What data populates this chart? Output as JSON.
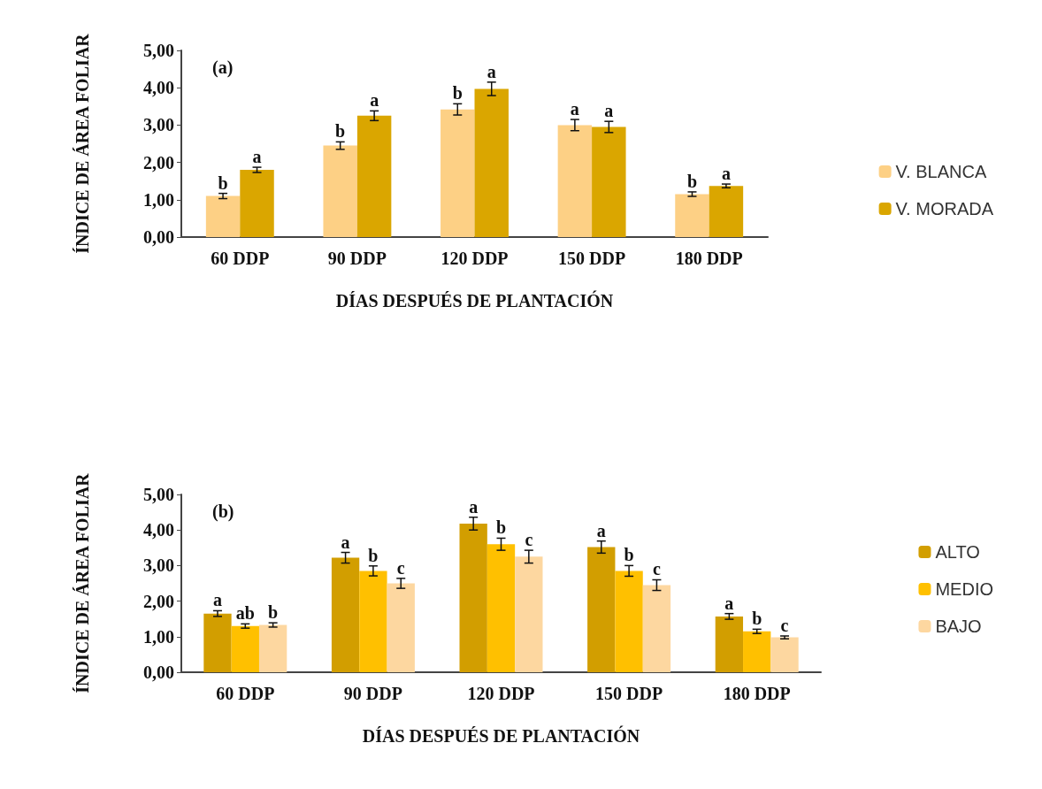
{
  "chart_data": [
    {
      "type": "bar",
      "title": "(a)",
      "xlabel": "DÍAS DESPUÉS DE PLANTACIÓN",
      "ylabel": "ÍNDICE DE ÁREA FOLIAR",
      "categories": [
        "60 DDP",
        "90 DDP",
        "120 DDP",
        "150 DDP",
        "180 DDP"
      ],
      "series": [
        {
          "name": "V. BLANCA",
          "color": "#fdd085",
          "values": [
            1.1,
            2.45,
            3.42,
            3.0,
            1.15
          ],
          "errors": [
            0.07,
            0.1,
            0.15,
            0.15,
            0.06
          ],
          "value_labels": [
            "b",
            "b",
            "b",
            "a",
            "b"
          ]
        },
        {
          "name": "V. MORADA",
          "color": "#daa600",
          "values": [
            1.8,
            3.25,
            3.97,
            2.95,
            1.37
          ],
          "errors": [
            0.07,
            0.13,
            0.18,
            0.15,
            0.05
          ],
          "value_labels": [
            "a",
            "a",
            "a",
            "a",
            "a"
          ]
        }
      ],
      "ylim": [
        0,
        5
      ],
      "yticks": [
        {
          "value": 0,
          "label": "0,00"
        },
        {
          "value": 1,
          "label": "1,00"
        },
        {
          "value": 2,
          "label": "2,00"
        },
        {
          "value": 3,
          "label": "3,00"
        },
        {
          "value": 4,
          "label": "4,00"
        },
        {
          "value": 5,
          "label": "5,00"
        }
      ],
      "legend": "right",
      "grid": false
    },
    {
      "type": "bar",
      "title": "(b)",
      "xlabel": "DÍAS DESPUÉS DE PLANTACIÓN",
      "ylabel": "ÍNDICE DE ÁREA FOLIAR",
      "categories": [
        "60 DDP",
        "90 DDP",
        "120 DDP",
        "150 DDP",
        "180 DDP"
      ],
      "series": [
        {
          "name": "ALTO",
          "color": "#d29e00",
          "values": [
            1.65,
            3.22,
            4.18,
            3.52,
            1.57
          ],
          "errors": [
            0.08,
            0.15,
            0.18,
            0.17,
            0.08
          ],
          "value_labels": [
            "a",
            "a",
            "a",
            "a",
            "a"
          ]
        },
        {
          "name": "MEDIO",
          "color": "#ffc000",
          "values": [
            1.3,
            2.85,
            3.6,
            2.85,
            1.15
          ],
          "errors": [
            0.06,
            0.14,
            0.17,
            0.15,
            0.06
          ],
          "value_labels": [
            "ab",
            "b",
            "b",
            "b",
            "b"
          ]
        },
        {
          "name": "BAJO",
          "color": "#fdd7a0",
          "values": [
            1.33,
            2.5,
            3.25,
            2.45,
            0.98
          ],
          "errors": [
            0.06,
            0.14,
            0.18,
            0.15,
            0.04
          ],
          "value_labels": [
            "b",
            "c",
            "c",
            "c",
            "c"
          ]
        }
      ],
      "ylim": [
        0,
        5
      ],
      "yticks": [
        {
          "value": 0,
          "label": "0,00"
        },
        {
          "value": 1,
          "label": "1,00"
        },
        {
          "value": 2,
          "label": "2,00"
        },
        {
          "value": 3,
          "label": "3,00"
        },
        {
          "value": 4,
          "label": "4,00"
        },
        {
          "value": 5,
          "label": "5,00"
        }
      ],
      "legend": "right",
      "grid": false
    }
  ]
}
